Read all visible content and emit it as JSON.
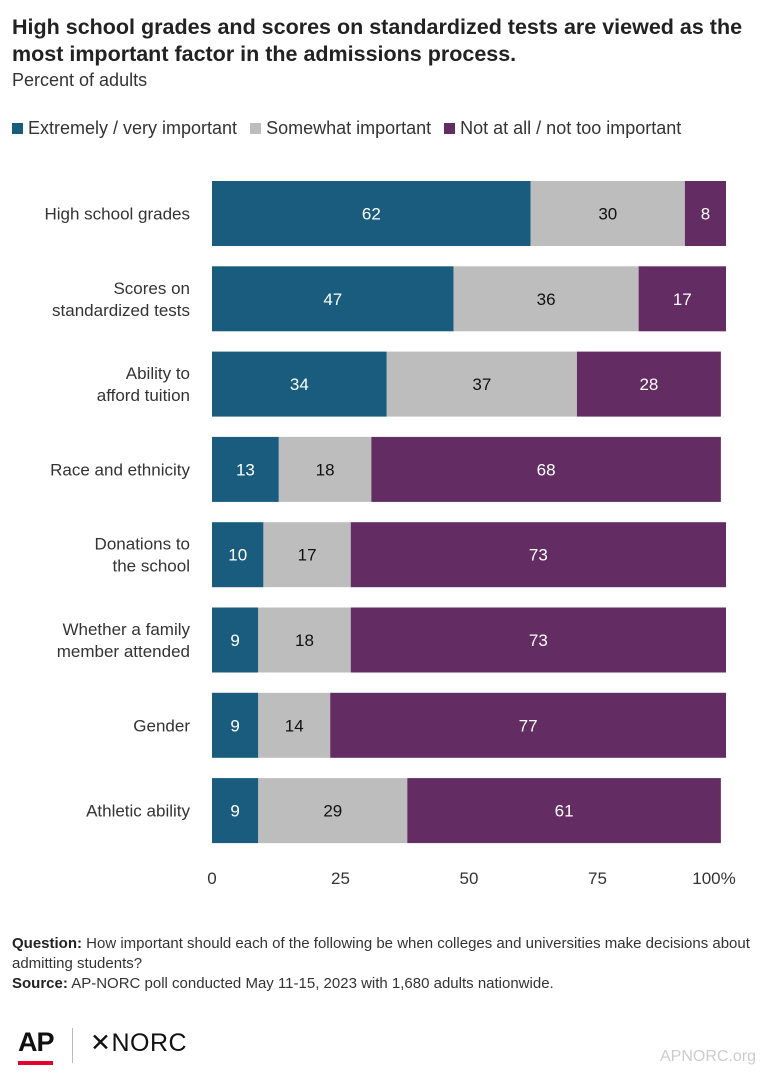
{
  "title": "High school grades and scores on standardized tests are viewed as the most important factor in the admissions process.",
  "subtitle": "Percent of adults",
  "colors": {
    "extremely": "#1a5c7e",
    "somewhat": "#bdbdbd",
    "notatall": "#632c63",
    "footer_site": "#cccccc",
    "ap_red": "#e4002b"
  },
  "chart_data": {
    "type": "bar",
    "orientation": "horizontal",
    "stacked": true,
    "categories": [
      "High school grades",
      "Scores on standardized tests",
      "Ability to afford tuition",
      "Race and ethnicity",
      "Donations to the school",
      "Whether a family member attended",
      "Gender",
      "Athletic ability"
    ],
    "series": [
      {
        "name": "Extremely / very important",
        "values": [
          62,
          47,
          34,
          13,
          10,
          9,
          9,
          9
        ]
      },
      {
        "name": "Somewhat important",
        "values": [
          30,
          36,
          37,
          18,
          17,
          18,
          14,
          29
        ]
      },
      {
        "name": "Not at all / not too important",
        "values": [
          8,
          17,
          28,
          68,
          73,
          73,
          77,
          61
        ]
      }
    ],
    "xlim": [
      0,
      100
    ],
    "xticks": [
      "0",
      "25",
      "50",
      "75",
      "100%"
    ],
    "legend": "top"
  },
  "footer": {
    "question_label": "Question:",
    "question": "How important should each of the following be when colleges and universities make decisions about admitting students?",
    "source_label": "Source:",
    "source": "AP-NORC poll conducted May 11-15, 2023 with 1,680 adults nationwide.",
    "logo_ap": "AP",
    "logo_norc": "✕NORC",
    "site": "APNORC.org"
  }
}
